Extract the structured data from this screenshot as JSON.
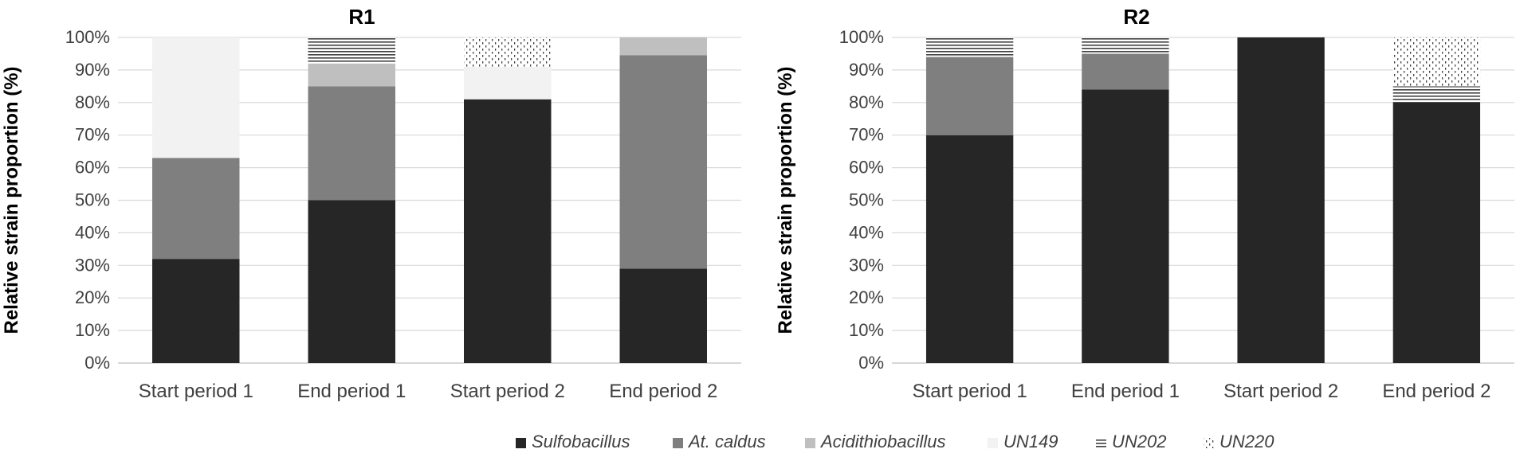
{
  "legend": [
    {
      "key": "sulfobacillus",
      "label": "Sulfobacillus",
      "italic": true
    },
    {
      "key": "atcaldus",
      "label": "At. caldus",
      "italic": true
    },
    {
      "key": "acidithiobacillus",
      "label": "Acidithiobacillus",
      "italic": true
    },
    {
      "key": "un149",
      "label": "UN149",
      "italic": true
    },
    {
      "key": "un202",
      "label": "UN202",
      "italic": true
    },
    {
      "key": "un220",
      "label": "UN220",
      "italic": true
    }
  ],
  "colors": {
    "sulfobacillus": "#262626",
    "atcaldus": "#7f7f7f",
    "acidithiobacillus": "#bfbfbf",
    "un149": "#f2f2f2",
    "un202": "#404040",
    "un220": "#404040",
    "grid": "#d9d9d9",
    "text": "#404040",
    "title": "#000000"
  },
  "chart_data": [
    {
      "type": "bar",
      "stacked": true,
      "title": "R1",
      "ylabel": "Relative strain proportion (%)",
      "ylim": [
        0,
        100
      ],
      "yticks": [
        "0%",
        "10%",
        "20%",
        "30%",
        "40%",
        "50%",
        "60%",
        "70%",
        "80%",
        "90%",
        "100%"
      ],
      "categories": [
        "Start period 1",
        "End period 1",
        "Start period 2",
        "End period 2"
      ],
      "series": [
        {
          "key": "sulfobacillus",
          "name": "Sulfobacillus",
          "values": [
            32,
            50,
            81,
            29
          ]
        },
        {
          "key": "atcaldus",
          "name": "At. caldus",
          "values": [
            31,
            35,
            0,
            65.5
          ]
        },
        {
          "key": "acidithiobacillus",
          "name": "Acidithiobacillus",
          "values": [
            0,
            7,
            0,
            5.5
          ]
        },
        {
          "key": "un149",
          "name": "UN149",
          "values": [
            37,
            0,
            10,
            0
          ]
        },
        {
          "key": "un202",
          "name": "UN202",
          "values": [
            0,
            8,
            0,
            0
          ]
        },
        {
          "key": "un220",
          "name": "UN220",
          "values": [
            0,
            0,
            9,
            0
          ]
        }
      ]
    },
    {
      "type": "bar",
      "stacked": true,
      "title": "R2",
      "ylabel": "Relative strain proportion (%)",
      "ylim": [
        0,
        100
      ],
      "yticks": [
        "0%",
        "10%",
        "20%",
        "30%",
        "40%",
        "50%",
        "60%",
        "70%",
        "80%",
        "90%",
        "100%"
      ],
      "categories": [
        "Start period 1",
        "End period 1",
        "Start period 2",
        "End period 2"
      ],
      "series": [
        {
          "key": "sulfobacillus",
          "name": "Sulfobacillus",
          "values": [
            70,
            84,
            100,
            80
          ]
        },
        {
          "key": "atcaldus",
          "name": "At. caldus",
          "values": [
            24,
            11,
            0,
            0
          ]
        },
        {
          "key": "acidithiobacillus",
          "name": "Acidithiobacillus",
          "values": [
            0,
            0,
            0,
            0
          ]
        },
        {
          "key": "un149",
          "name": "UN149",
          "values": [
            0,
            0,
            0,
            0
          ]
        },
        {
          "key": "un202",
          "name": "UN202",
          "values": [
            6,
            5,
            0,
            5
          ]
        },
        {
          "key": "un220",
          "name": "UN220",
          "values": [
            0,
            0,
            0,
            15
          ]
        }
      ]
    }
  ]
}
